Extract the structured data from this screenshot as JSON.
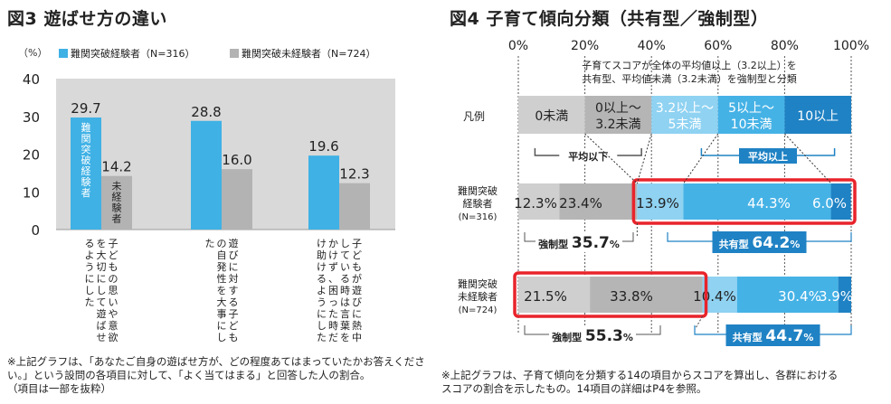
{
  "fig3": {
    "title": "図3 遊ばせ方の違い",
    "note": "※上記グラフは、「あなたご自身の遊ばせ方が、どの程度あてはまっていたかお答えください。」という設問の各項目に対して、「よく当てはまる」と回答した人の割合。\n（項目は一部を抜粋）"
  },
  "fig4": {
    "title": "図4 子育て傾向分類（共有型／強制型）",
    "note": "※上記グラフは、子育て傾向を分類する14の項目からスコアを算出し、各群における\nスコアの割合を示したもの。14項目の詳細はP4を参照。",
    "description_line1": "子育てスコアが全体の平均値以上（3.2以上）を",
    "description_line2": "共有型、平均値未満（3.2未満）を強制型と分類",
    "legend_label": "凡例",
    "legend_items": [
      {
        "line1": "0未満",
        "line2": "",
        "color": "#cfcfcf",
        "text_color": "#222222"
      },
      {
        "line1": "0以上～",
        "line2": "3.2未満",
        "color": "#b5b5b5",
        "text_color": "#222222"
      },
      {
        "line1": "3.2以上～",
        "line2": "5未満",
        "color": "#8fd2f2",
        "text_color": "#ffffff"
      },
      {
        "line1": "5以上～",
        "line2": "10未満",
        "color": "#45b2e6",
        "text_color": "#ffffff"
      },
      {
        "line1": "10以上",
        "line2": "",
        "color": "#1f82c4",
        "text_color": "#ffffff"
      }
    ],
    "below_avg_label": "平均以下",
    "above_avg_label": "平均以上",
    "forced_label": "強制型",
    "shared_label": "共有型"
  },
  "colors": {
    "experienced": "#3fb1e5",
    "inexperienced": "#b3b3b3",
    "plot_bg": "#d9d9d9",
    "highlight": "#e8242b",
    "shared_badge": "#1f82c4"
  },
  "chart_data": [
    {
      "type": "bar",
      "title": "図3 遊ばせ方の違い",
      "ylabel": "（%）",
      "ylim": [
        0,
        40
      ],
      "yticks": [
        0,
        10,
        20,
        30,
        40
      ],
      "grid": false,
      "legend_placement": "top",
      "categories": [
        "子どもの思いや意欲を大切にして遊ばせるようにした",
        "遊びに対する子どもの自発性を大事にした",
        "子どもが遊びに熱中している時は言葉をかけず、困った時だけ助けるようにした"
      ],
      "series": [
        {
          "name": "難関突破経験者（N=316）",
          "bar_label": "難関突破経験者",
          "values": [
            29.7,
            28.8,
            19.6
          ]
        },
        {
          "name": "難関突破未経験者（N=724）",
          "bar_label": "未経験者",
          "values": [
            14.2,
            16.0,
            12.3
          ]
        }
      ]
    },
    {
      "type": "bar",
      "orientation": "horizontal-stacked",
      "title": "図4 子育て傾向分類（共有型／強制型）",
      "x_ticks": [
        "0%",
        "20%",
        "40%",
        "60%",
        "80%",
        "100%"
      ],
      "xlim": [
        0,
        100
      ],
      "categories": [
        "難関突破経験者（N=316）",
        "難関突破未経験者（N=724）"
      ],
      "category_lines": [
        [
          "難関突破",
          "経験者",
          "(N=316)"
        ],
        [
          "難関突破",
          "未経験者",
          "(N=724)"
        ]
      ],
      "series": [
        {
          "name": "0未満",
          "values": [
            12.3,
            21.5
          ]
        },
        {
          "name": "0以上～3.2未満",
          "values": [
            23.4,
            33.8
          ]
        },
        {
          "name": "3.2以上～5未満",
          "values": [
            13.9,
            10.4
          ]
        },
        {
          "name": "5以上～10未満",
          "values": [
            44.3,
            30.4
          ]
        },
        {
          "name": "10以上",
          "values": [
            6.0,
            3.9
          ]
        }
      ],
      "segment_labels": [
        [
          "12.3%",
          "23.4%",
          "13.9%",
          "44.3%",
          "6.0%"
        ],
        [
          "21.5%",
          "33.8%",
          "10.4%",
          "30.4%",
          "3.9%"
        ]
      ],
      "totals": [
        {
          "forced": "35.7",
          "shared": "64.2"
        },
        {
          "forced": "55.3",
          "shared": "44.7"
        }
      ],
      "percent_unit": "%"
    }
  ]
}
